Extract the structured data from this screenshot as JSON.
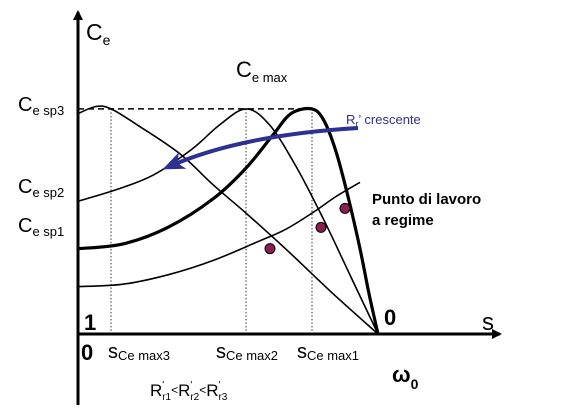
{
  "chart_data": {
    "type": "line",
    "title": "",
    "y_axis_label": {
      "main": "C",
      "sub": "e"
    },
    "x_axis_label_top": "s",
    "x_axis_label_bottom": {
      "main": "ω",
      "sub": "0"
    },
    "origin_label_top": "1",
    "origin_label_bottom": "0",
    "right_end_label_top": "0",
    "peak_label": {
      "main": "C",
      "sub": "e max"
    },
    "y_tick_labels": [
      {
        "id": "ce-sp3",
        "main": "C",
        "sub": "e sp3",
        "level": 0.95
      },
      {
        "id": "ce-sp2",
        "main": "C",
        "sub": "e sp2",
        "level": 0.56
      },
      {
        "id": "ce-sp1",
        "main": "C",
        "sub": "e sp1",
        "level": 0.36
      }
    ],
    "x_tick_labels": [
      {
        "id": "s-cemax3",
        "main": "s",
        "sub": "Ce max3",
        "s": 0.89
      },
      {
        "id": "s-cemax2",
        "main": "s",
        "sub": "Ce max2",
        "s": 0.44
      },
      {
        "id": "s-cemax1",
        "main": "s",
        "sub": "Ce max1",
        "s": 0.22
      }
    ],
    "arrow_label": {
      "main": "R",
      "sub": "r",
      "rest": "’ crescente"
    },
    "annotation": [
      "Punto di lavoro",
      "a regime"
    ],
    "resistance_relation": [
      {
        "main": "R",
        "sup": "'",
        "sub": "r1"
      },
      {
        "op": "<"
      },
      {
        "main": "R",
        "sup": "'",
        "sub": "r2"
      },
      {
        "op": "<"
      },
      {
        "main": "R",
        "sup": "'",
        "sub": "r3"
      }
    ],
    "series": [
      {
        "points": [
          [
            1.0,
            0.36
          ],
          [
            0.85,
            0.38
          ],
          [
            0.7,
            0.45
          ],
          [
            0.55,
            0.57
          ],
          [
            0.44,
            0.7
          ],
          [
            0.35,
            0.84
          ],
          [
            0.29,
            0.93
          ],
          [
            0.22,
            0.95
          ],
          [
            0.18,
            0.9
          ],
          [
            0.14,
            0.77
          ],
          [
            0.1,
            0.58
          ],
          [
            0.06,
            0.36
          ],
          [
            0.03,
            0.17
          ],
          [
            0.0,
            0.0
          ]
        ],
        "emphasis": "bold"
      },
      {
        "points": [
          [
            1.0,
            0.56
          ],
          [
            0.87,
            0.61
          ],
          [
            0.75,
            0.67
          ],
          [
            0.62,
            0.78
          ],
          [
            0.53,
            0.88
          ],
          [
            0.44,
            0.95
          ],
          [
            0.36,
            0.88
          ],
          [
            0.27,
            0.7
          ],
          [
            0.18,
            0.48
          ],
          [
            0.09,
            0.24
          ],
          [
            0.0,
            0.0
          ]
        ],
        "emphasis": "normal"
      },
      {
        "points": [
          [
            1.0,
            0.93
          ],
          [
            0.94,
            0.96
          ],
          [
            0.89,
            0.95
          ],
          [
            0.8,
            0.88
          ],
          [
            0.66,
            0.76
          ],
          [
            0.55,
            0.63
          ],
          [
            0.44,
            0.51
          ],
          [
            0.3,
            0.35
          ],
          [
            0.15,
            0.17
          ],
          [
            0.0,
            0.0
          ]
        ],
        "emphasis": "normal"
      },
      {
        "points": [
          [
            1.0,
            0.2
          ],
          [
            0.85,
            0.21
          ],
          [
            0.7,
            0.25
          ],
          [
            0.55,
            0.31
          ],
          [
            0.4,
            0.39
          ],
          [
            0.31,
            0.44
          ],
          [
            0.22,
            0.51
          ],
          [
            0.14,
            0.58
          ],
          [
            0.06,
            0.64
          ]
        ],
        "emphasis": "normal",
        "role": "load"
      }
    ],
    "operating_points": [
      {
        "s": 0.11,
        "value": 0.53
      },
      {
        "s": 0.19,
        "value": 0.45
      },
      {
        "s": 0.36,
        "value": 0.36
      }
    ],
    "x_direction": "s decreasing from 1 at origin to 0 at right",
    "ylim": [
      0,
      1.0
    ],
    "xlim": [
      1,
      0
    ]
  }
}
